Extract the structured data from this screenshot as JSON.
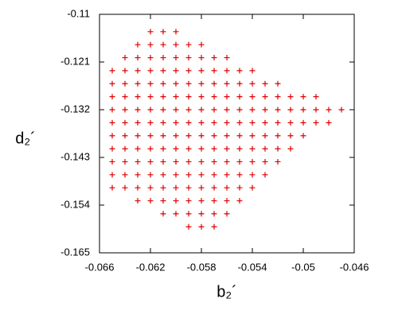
{
  "chart_data": {
    "type": "scatter",
    "x_label": "b₂´",
    "y_label": "d₂´",
    "color": "#e00000",
    "xlim": [
      -0.066,
      -0.046
    ],
    "xticks": [
      -0.066,
      -0.062,
      -0.058,
      -0.054,
      -0.05,
      -0.046
    ],
    "ylim": [
      -0.165,
      -0.11
    ],
    "yticks": [
      -0.11,
      -0.121,
      -0.132,
      -0.143,
      -0.154,
      -0.165
    ],
    "x": [
      -0.065,
      -0.065,
      -0.065,
      -0.065,
      -0.065,
      -0.065,
      -0.065,
      -0.065,
      -0.065,
      -0.065,
      -0.064,
      -0.064,
      -0.064,
      -0.064,
      -0.064,
      -0.064,
      -0.064,
      -0.064,
      -0.064,
      -0.064,
      -0.064,
      -0.063,
      -0.063,
      -0.063,
      -0.063,
      -0.063,
      -0.063,
      -0.063,
      -0.063,
      -0.063,
      -0.063,
      -0.063,
      -0.063,
      -0.063,
      -0.062,
      -0.062,
      -0.062,
      -0.062,
      -0.062,
      -0.062,
      -0.062,
      -0.062,
      -0.062,
      -0.062,
      -0.062,
      -0.062,
      -0.062,
      -0.062,
      -0.061,
      -0.061,
      -0.061,
      -0.061,
      -0.061,
      -0.061,
      -0.061,
      -0.061,
      -0.061,
      -0.061,
      -0.061,
      -0.061,
      -0.061,
      -0.061,
      -0.061,
      -0.06,
      -0.06,
      -0.06,
      -0.06,
      -0.06,
      -0.06,
      -0.06,
      -0.06,
      -0.06,
      -0.06,
      -0.06,
      -0.06,
      -0.06,
      -0.06,
      -0.06,
      -0.059,
      -0.059,
      -0.059,
      -0.059,
      -0.059,
      -0.059,
      -0.059,
      -0.059,
      -0.059,
      -0.059,
      -0.059,
      -0.059,
      -0.059,
      -0.059,
      -0.059,
      -0.058,
      -0.058,
      -0.058,
      -0.058,
      -0.058,
      -0.058,
      -0.058,
      -0.058,
      -0.058,
      -0.058,
      -0.058,
      -0.058,
      -0.058,
      -0.058,
      -0.058,
      -0.057,
      -0.057,
      -0.057,
      -0.057,
      -0.057,
      -0.057,
      -0.057,
      -0.057,
      -0.057,
      -0.057,
      -0.057,
      -0.057,
      -0.057,
      -0.057,
      -0.056,
      -0.056,
      -0.056,
      -0.056,
      -0.056,
      -0.056,
      -0.056,
      -0.056,
      -0.056,
      -0.056,
      -0.056,
      -0.056,
      -0.056,
      -0.055,
      -0.055,
      -0.055,
      -0.055,
      -0.055,
      -0.055,
      -0.055,
      -0.055,
      -0.055,
      -0.055,
      -0.055,
      -0.054,
      -0.054,
      -0.054,
      -0.054,
      -0.054,
      -0.054,
      -0.054,
      -0.054,
      -0.054,
      -0.054,
      -0.053,
      -0.053,
      -0.053,
      -0.053,
      -0.053,
      -0.053,
      -0.053,
      -0.053,
      -0.052,
      -0.052,
      -0.052,
      -0.052,
      -0.052,
      -0.052,
      -0.052,
      -0.051,
      -0.051,
      -0.051,
      -0.051,
      -0.051,
      -0.05,
      -0.05,
      -0.05,
      -0.05,
      -0.049,
      -0.049,
      -0.049,
      -0.048,
      -0.048,
      -0.047
    ],
    "values": [
      -0.123,
      -0.126,
      -0.129,
      -0.132,
      -0.135,
      -0.138,
      -0.141,
      -0.144,
      -0.147,
      -0.15,
      -0.12,
      -0.123,
      -0.126,
      -0.129,
      -0.132,
      -0.135,
      -0.138,
      -0.141,
      -0.144,
      -0.147,
      -0.15,
      -0.117,
      -0.12,
      -0.123,
      -0.126,
      -0.129,
      -0.132,
      -0.135,
      -0.138,
      -0.141,
      -0.144,
      -0.147,
      -0.15,
      -0.153,
      -0.114,
      -0.117,
      -0.12,
      -0.123,
      -0.126,
      -0.129,
      -0.132,
      -0.135,
      -0.138,
      -0.141,
      -0.144,
      -0.147,
      -0.15,
      -0.153,
      -0.114,
      -0.117,
      -0.12,
      -0.123,
      -0.126,
      -0.129,
      -0.132,
      -0.135,
      -0.138,
      -0.141,
      -0.144,
      -0.147,
      -0.15,
      -0.153,
      -0.156,
      -0.114,
      -0.117,
      -0.12,
      -0.123,
      -0.126,
      -0.129,
      -0.132,
      -0.135,
      -0.138,
      -0.141,
      -0.144,
      -0.147,
      -0.15,
      -0.153,
      -0.156,
      -0.117,
      -0.12,
      -0.123,
      -0.126,
      -0.129,
      -0.132,
      -0.135,
      -0.138,
      -0.141,
      -0.144,
      -0.147,
      -0.15,
      -0.153,
      -0.156,
      -0.159,
      -0.117,
      -0.12,
      -0.123,
      -0.126,
      -0.129,
      -0.132,
      -0.135,
      -0.138,
      -0.141,
      -0.144,
      -0.147,
      -0.15,
      -0.153,
      -0.156,
      -0.159,
      -0.12,
      -0.123,
      -0.126,
      -0.129,
      -0.132,
      -0.135,
      -0.138,
      -0.141,
      -0.144,
      -0.147,
      -0.15,
      -0.153,
      -0.156,
      -0.159,
      -0.12,
      -0.123,
      -0.126,
      -0.129,
      -0.132,
      -0.135,
      -0.138,
      -0.141,
      -0.144,
      -0.147,
      -0.15,
      -0.153,
      -0.156,
      -0.123,
      -0.126,
      -0.129,
      -0.132,
      -0.135,
      -0.138,
      -0.141,
      -0.144,
      -0.147,
      -0.15,
      -0.153,
      -0.123,
      -0.126,
      -0.129,
      -0.132,
      -0.135,
      -0.138,
      -0.141,
      -0.144,
      -0.147,
      -0.15,
      -0.126,
      -0.129,
      -0.132,
      -0.135,
      -0.138,
      -0.141,
      -0.144,
      -0.147,
      -0.126,
      -0.129,
      -0.132,
      -0.135,
      -0.138,
      -0.141,
      -0.144,
      -0.129,
      -0.132,
      -0.135,
      -0.138,
      -0.141,
      -0.129,
      -0.132,
      -0.135,
      -0.138,
      -0.129,
      -0.132,
      -0.135,
      -0.132,
      -0.135,
      -0.132
    ]
  }
}
